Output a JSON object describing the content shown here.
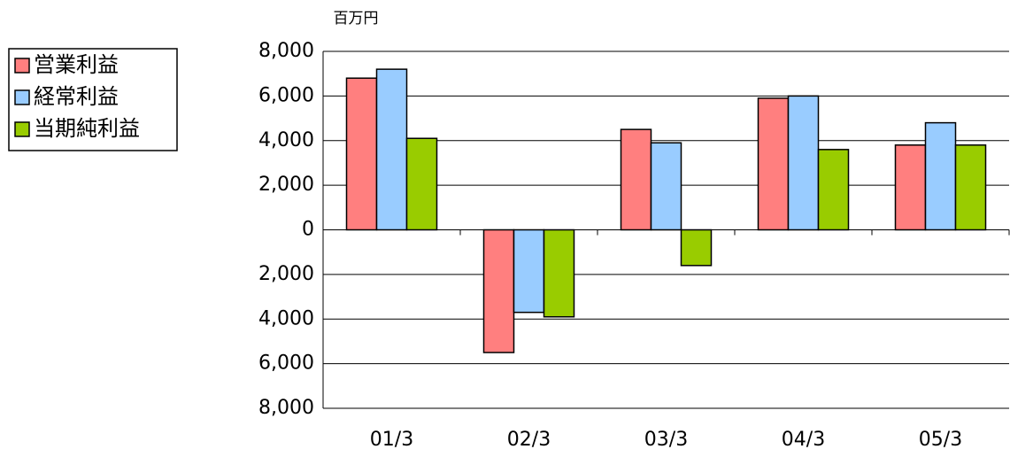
{
  "chart_data": {
    "type": "bar",
    "unit_label": "百万円",
    "categories": [
      "01/3",
      "02/3",
      "03/3",
      "04/3",
      "05/3"
    ],
    "series": [
      {
        "name": "営業利益",
        "color": "#ff7f7f",
        "values": [
          6800,
          -5500,
          4500,
          5900,
          3800
        ]
      },
      {
        "name": "経常利益",
        "color": "#99ccff",
        "values": [
          7200,
          -3700,
          3900,
          6000,
          4800
        ]
      },
      {
        "name": "当期純利益",
        "color": "#99cc00",
        "values": [
          4100,
          -3900,
          -1600,
          3600,
          3800
        ]
      }
    ],
    "ylim": [
      -8000,
      8000
    ],
    "yticks": [
      {
        "value": -8000,
        "label": "8,000"
      },
      {
        "value": -6000,
        "label": "6,000"
      },
      {
        "value": -4000,
        "label": "4,000"
      },
      {
        "value": -2000,
        "label": "2,000"
      },
      0,
      {
        "value": 2000,
        "label": "2,000"
      },
      {
        "value": 4000,
        "label": "4,000"
      },
      {
        "value": 6000,
        "label": "6,000"
      },
      {
        "value": 8000,
        "label": "8,000"
      }
    ],
    "grid": true,
    "legend": "left"
  }
}
